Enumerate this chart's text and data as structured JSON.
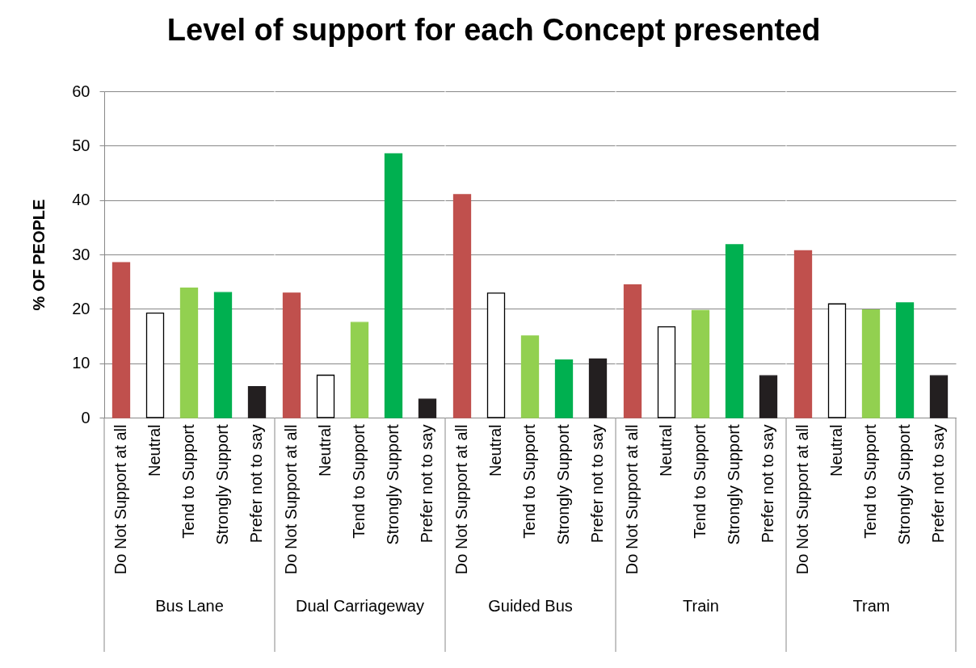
{
  "chart_data": [
    {
      "type": "bar",
      "title": "Level of support for each Concept presented",
      "ylabel": "% OF PEOPLE",
      "xlabel": "Bus Lane",
      "categories": [
        "Do Not Support at all",
        "Neutral",
        "Tend to Support",
        "Strongly Support",
        "Prefer not to say"
      ],
      "values": [
        28.5,
        19.2,
        23.8,
        23,
        5.7
      ],
      "colors": [
        "#c0504d",
        "#ffffff",
        "#92d050",
        "#00b050",
        "#231f20"
      ],
      "ylim": [
        0,
        60
      ],
      "yticks": [
        0,
        10,
        20,
        30,
        40,
        50,
        60
      ],
      "grid": "y"
    },
    {
      "type": "bar",
      "xlabel": "Dual Carriageway",
      "categories": [
        "Do Not Support at all",
        "Neutral",
        "Tend to Support",
        "Strongly Support",
        "Prefer not to say"
      ],
      "values": [
        22.9,
        7.8,
        17.5,
        48.5,
        3.4
      ],
      "colors": [
        "#c0504d",
        "#ffffff",
        "#92d050",
        "#00b050",
        "#231f20"
      ],
      "ylim": [
        0,
        60
      ],
      "yticks": [
        0,
        10,
        20,
        30,
        40,
        50,
        60
      ],
      "grid": "y",
      "tick_labels": "x"
    },
    {
      "type": "bar",
      "xlabel": "Guided Bus",
      "categories": [
        "Do Not Support at all",
        "Neutral",
        "Tend to Support",
        "Strongly Support",
        "Prefer not to say"
      ],
      "values": [
        41,
        22.9,
        15,
        10.6,
        10.8
      ],
      "colors": [
        "#c0504d",
        "#ffffff",
        "#92d050",
        "#00b050",
        "#231f20"
      ],
      "ylim": [
        0,
        60
      ],
      "yticks": [
        0,
        10,
        20,
        30,
        40,
        50,
        60
      ],
      "grid": "y",
      "tick_labels": "x"
    },
    {
      "type": "bar",
      "xlabel": "Train",
      "categories": [
        "Do Not Support at all",
        "Neutral",
        "Tend to Support",
        "Strongly Support",
        "Prefer not to say"
      ],
      "values": [
        24.4,
        16.7,
        19.7,
        31.8,
        7.7
      ],
      "colors": [
        "#c0504d",
        "#ffffff",
        "#92d050",
        "#00b050",
        "#231f20"
      ],
      "ylim": [
        0,
        60
      ],
      "yticks": [
        0,
        10,
        20,
        30,
        40,
        50,
        60
      ],
      "grid": "y",
      "tick_labels": "x"
    },
    {
      "type": "bar",
      "xlabel": "Tram",
      "categories": [
        "Do Not Support at all",
        "Neutral",
        "Tend to Support",
        "Strongly Support",
        "Prefer not to say"
      ],
      "values": [
        30.7,
        20.9,
        19.8,
        21.1,
        7.7
      ],
      "colors": [
        "#c0504d",
        "#ffffff",
        "#92d050",
        "#00b050",
        "#231f20"
      ],
      "ylim": [
        0,
        60
      ],
      "yticks": [
        0,
        10,
        20,
        30,
        40,
        50,
        60
      ],
      "grid": "y",
      "tick_labels": "x"
    }
  ]
}
